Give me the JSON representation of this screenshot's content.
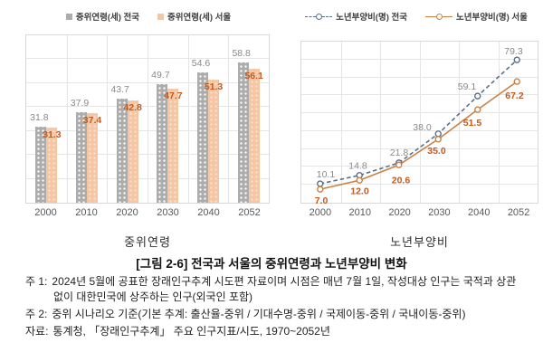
{
  "figure": {
    "caption": "[그림 2-6] 전국과 서울의 중위연령과 노년부양비 변화",
    "notes": [
      {
        "label": "주 1:",
        "text": "2024년 5월에 공표한 장래인구추계 시도편 자료이며 시점은 매년 7월 1일, 작성대상 인구는 국적과 상관없이 대한민국에 상주하는 인구(외국인 포함)"
      },
      {
        "label": "주 2:",
        "text": "중위 시나리오 기준(기본 추계: 출산율-중위 / 기대수명-중위 / 국제이동-중위 / 국내이동-중위)"
      },
      {
        "label": "자료:",
        "text": "통계청, 「장래인구추계」 주요 인구지표/시도, 1970~2052년"
      }
    ]
  },
  "chart_data": [
    {
      "type": "bar",
      "title": "중위연령",
      "categories": [
        "2000",
        "2010",
        "2020",
        "2030",
        "2040",
        "2052"
      ],
      "series": [
        {
          "name": "중위연령(세) 전국",
          "values": [
            31.8,
            37.9,
            43.7,
            49.7,
            54.6,
            58.8
          ],
          "color": "#ACACAC",
          "label_color": "#8A8A8A",
          "fill_pattern": "white-dots"
        },
        {
          "name": "중위연령(세) 서울",
          "values": [
            31.3,
            37.4,
            42.8,
            47.7,
            51.3,
            56.1
          ],
          "color": "#F4C6A3",
          "label_color": "#C2591F",
          "fill_pattern": "faint-dots"
        }
      ],
      "ylim": [
        0,
        70
      ],
      "grid_step": 10,
      "grid": true,
      "legend_position": "top",
      "value_labels": true,
      "y_axis_labels": false
    },
    {
      "type": "line",
      "title": "노년부양비",
      "categories": [
        "2000",
        "2010",
        "2020",
        "2030",
        "2040",
        "2052"
      ],
      "series": [
        {
          "name": "노년부양비(명) 전국",
          "values": [
            10.1,
            14.8,
            21.8,
            38.0,
            59.1,
            79.3
          ],
          "color": "#5A6E8C",
          "label_color": "#8A8A8A",
          "line_style": "dashed",
          "marker": "open-circle"
        },
        {
          "name": "노년부양비(명) 서울",
          "values": [
            7.0,
            12.0,
            20.6,
            35.0,
            51.5,
            67.2
          ],
          "color": "#C98146",
          "label_color": "#C2591F",
          "line_style": "solid",
          "marker": "open-circle"
        }
      ],
      "ylim": [
        0,
        90
      ],
      "grid_step": 10,
      "grid": true,
      "legend_position": "top",
      "value_labels": true,
      "y_axis_labels": false
    }
  ],
  "colors": {
    "national_bar": "#ACACAC",
    "seoul_bar": "#F4C6A3",
    "national_line": "#5A6E8C",
    "seoul_line": "#C98146",
    "national_value_label": "#8A8A8A",
    "seoul_value_label": "#C2591F",
    "gridline": "#E5E5E5",
    "axis_text": "#595959"
  }
}
